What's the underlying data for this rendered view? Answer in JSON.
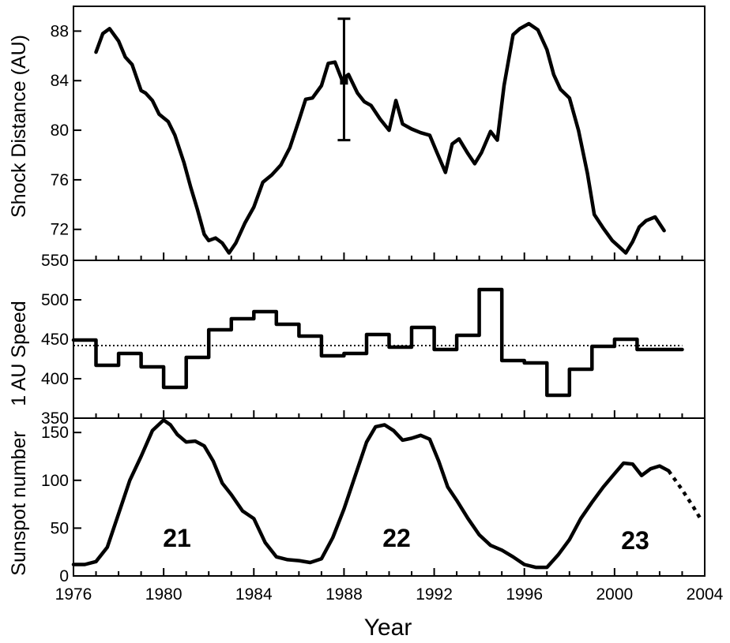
{
  "chart_data": [
    {
      "type": "line",
      "panel": "top",
      "ylabel": "Shock Distance (AU)",
      "xlim": [
        1976,
        2004
      ],
      "ylim": [
        69.5,
        90
      ],
      "yticks": [
        72,
        76,
        80,
        84,
        88
      ],
      "ytick_labels": [
        "72",
        "76",
        "80",
        "84",
        "88"
      ],
      "grid": false,
      "series": [
        {
          "x": [
            1977.0,
            1977.3,
            1977.6,
            1978.0,
            1978.3,
            1978.6,
            1979.0,
            1979.2,
            1979.5,
            1979.8,
            1980.2,
            1980.5,
            1980.9,
            1981.2,
            1981.5,
            1981.8,
            1982.0,
            1982.3,
            1982.6,
            1982.9,
            1983.2,
            1983.6,
            1984.0,
            1984.4,
            1984.8,
            1985.2,
            1985.6,
            1986.0,
            1986.3,
            1986.6,
            1987.0,
            1987.3,
            1987.6,
            1987.9,
            1988.2,
            1988.6,
            1988.9,
            1989.2,
            1989.6,
            1990.0,
            1990.3,
            1990.6,
            1991.0,
            1991.4,
            1991.8,
            1992.1,
            1992.5,
            1992.8,
            1993.1,
            1993.5,
            1993.8,
            1994.1,
            1994.5,
            1994.8,
            1995.1,
            1995.5,
            1995.8,
            1996.2,
            1996.6,
            1997.0,
            1997.3,
            1997.6,
            1998.0,
            1998.4,
            1998.8,
            1999.1,
            1999.5,
            1999.9,
            2000.2,
            2000.5,
            2000.8,
            2001.1,
            2001.4,
            2001.8,
            2002.2
          ],
          "y": [
            86.3,
            87.8,
            88.2,
            87.2,
            85.9,
            85.3,
            83.2,
            83.0,
            82.4,
            81.3,
            80.7,
            79.6,
            77.4,
            75.4,
            73.6,
            71.6,
            71.1,
            71.3,
            70.9,
            70.1,
            70.9,
            72.5,
            73.8,
            75.8,
            76.4,
            77.2,
            78.6,
            80.8,
            82.5,
            82.6,
            83.6,
            85.4,
            85.5,
            84.1,
            84.5,
            83.0,
            82.3,
            82.0,
            80.9,
            80.0,
            82.4,
            80.5,
            80.1,
            79.8,
            79.6,
            78.3,
            76.6,
            78.9,
            79.3,
            78.1,
            77.3,
            78.2,
            79.9,
            79.2,
            83.6,
            87.7,
            88.2,
            88.6,
            88.1,
            86.5,
            84.5,
            83.3,
            82.6,
            80.0,
            76.5,
            73.2,
            72.1,
            71.1,
            70.6,
            70.1,
            71.0,
            72.2,
            72.7,
            73.0,
            71.9
          ]
        }
      ],
      "error_bar": {
        "x": 1988,
        "y": 84,
        "low": 79.2,
        "high": 89.0
      }
    },
    {
      "type": "step",
      "panel": "middle",
      "ylabel": "1 AU Speed",
      "xlim": [
        1976,
        2004
      ],
      "ylim": [
        350,
        550
      ],
      "yticks": [
        350,
        400,
        450,
        500,
        550
      ],
      "ytick_labels": [
        "350",
        "400",
        "450",
        "500",
        "550"
      ],
      "reference_line": 442,
      "grid": false,
      "series": [
        {
          "x": [
            1976,
            1977,
            1978,
            1979,
            1980,
            1981,
            1982,
            1983,
            1984,
            1985,
            1986,
            1987,
            1988,
            1989,
            1990,
            1991,
            1992,
            1993,
            1994,
            1995,
            1996,
            1997,
            1998,
            1999,
            2000,
            2001,
            2002
          ],
          "y": [
            449,
            417,
            432,
            415,
            389,
            427,
            462,
            476,
            485,
            469,
            454,
            429,
            432,
            456,
            440,
            465,
            437,
            455,
            513,
            423,
            420,
            379,
            412,
            441,
            450,
            437,
            437
          ]
        }
      ]
    },
    {
      "type": "line",
      "panel": "bottom",
      "ylabel": "Sunspot number",
      "xlabel": "Year",
      "xlim": [
        1976,
        2004
      ],
      "ylim": [
        0,
        165
      ],
      "xticks": [
        1976,
        1980,
        1984,
        1988,
        1992,
        1996,
        2000,
        2004
      ],
      "xtick_labels": [
        "1976",
        "1980",
        "1984",
        "1988",
        "1992",
        "1996",
        "2000",
        "2004"
      ],
      "yticks": [
        0,
        50,
        100,
        150
      ],
      "ytick_labels": [
        "0",
        "50",
        "100",
        "150"
      ],
      "grid": false,
      "series": [
        {
          "x": [
            1976.0,
            1976.5,
            1977.0,
            1977.5,
            1978.0,
            1978.5,
            1979.0,
            1979.5,
            1980.0,
            1980.3,
            1980.6,
            1981.0,
            1981.4,
            1981.8,
            1982.2,
            1982.6,
            1983.0,
            1983.5,
            1984.0,
            1984.5,
            1985.0,
            1985.5,
            1986.0,
            1986.5,
            1987.0,
            1987.5,
            1988.0,
            1988.5,
            1989.0,
            1989.4,
            1989.8,
            1990.2,
            1990.6,
            1991.0,
            1991.4,
            1991.8,
            1992.2,
            1992.6,
            1993.0,
            1993.5,
            1994.0,
            1994.5,
            1995.0,
            1995.5,
            1996.0,
            1996.5,
            1997.0,
            1997.5,
            1998.0,
            1998.5,
            1999.0,
            1999.5,
            2000.0,
            2000.4,
            2000.8,
            2001.2,
            2001.6,
            2002.0,
            2002.4
          ],
          "y": [
            12,
            12,
            15,
            30,
            65,
            100,
            125,
            152,
            163,
            158,
            148,
            140,
            141,
            136,
            120,
            97,
            85,
            68,
            60,
            35,
            20,
            17,
            16,
            14,
            18,
            40,
            70,
            105,
            140,
            156,
            158,
            152,
            142,
            144,
            147,
            143,
            120,
            93,
            79,
            60,
            43,
            32,
            27,
            20,
            12,
            9,
            9,
            22,
            38,
            60,
            77,
            93,
            107,
            118,
            117,
            105,
            112,
            115,
            110
          ]
        },
        {
          "name": "forecast",
          "x": [
            2002.4,
            2003.0,
            2003.5,
            2004.0
          ],
          "y": [
            110,
            90,
            72,
            58
          ]
        }
      ],
      "annotations": [
        "21",
        "22",
        "23"
      ]
    }
  ]
}
